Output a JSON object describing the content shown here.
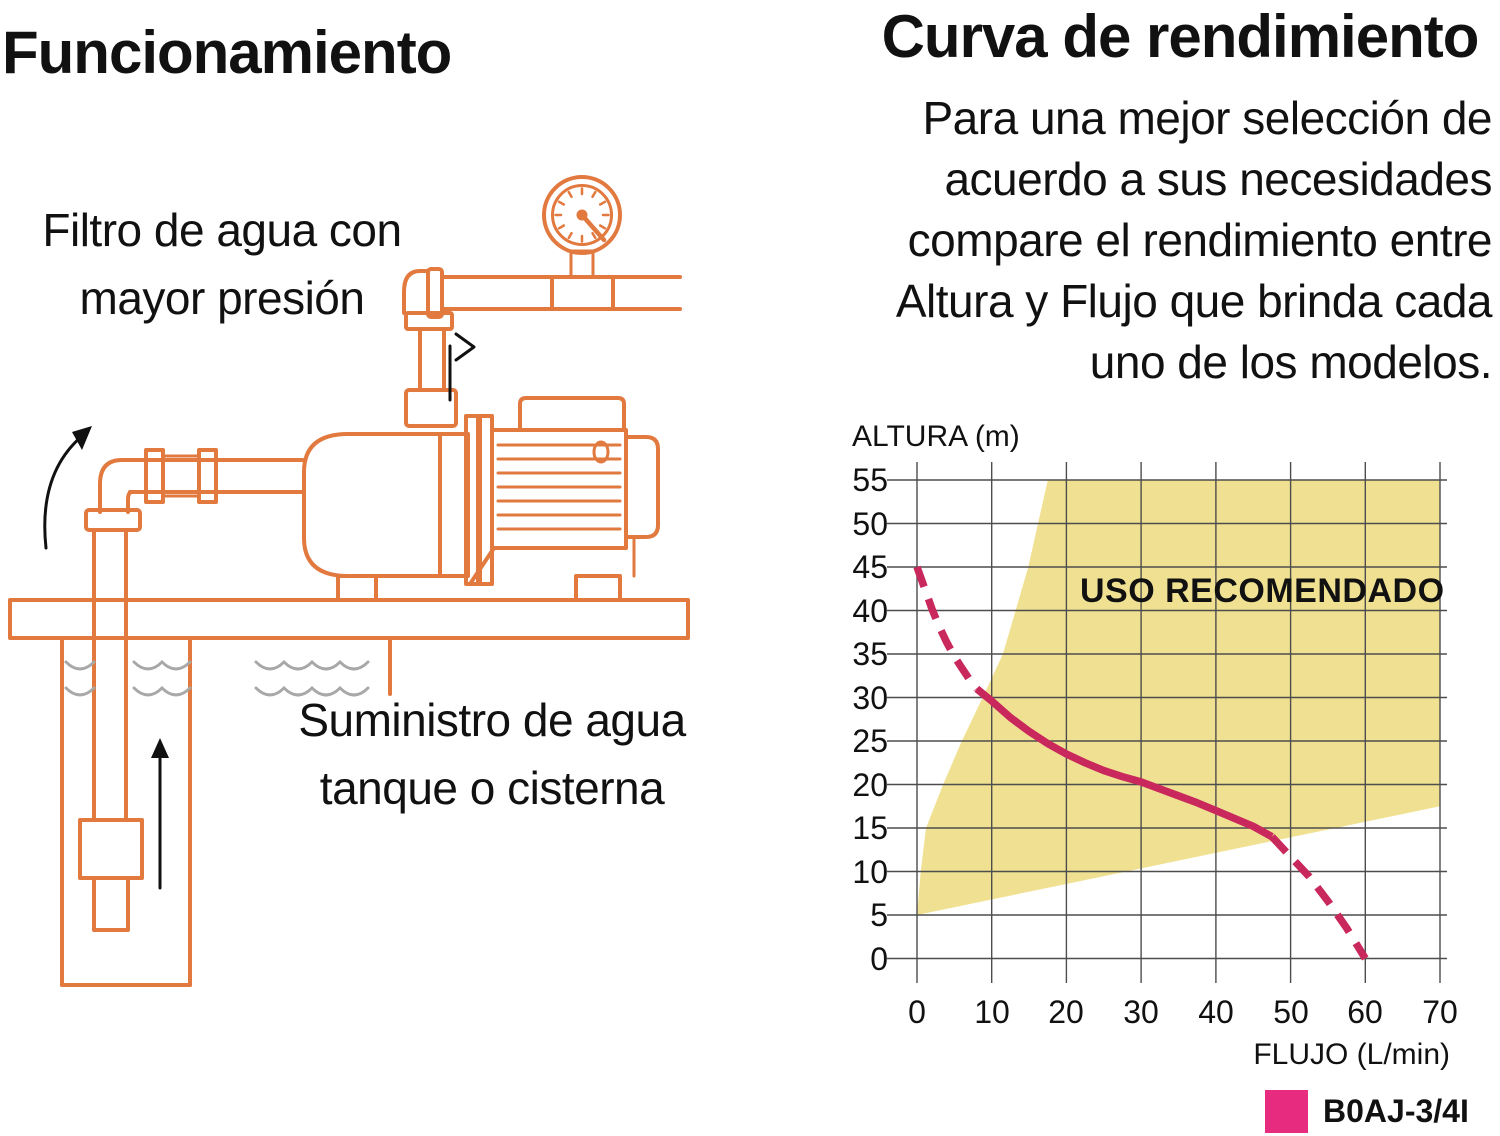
{
  "left_panel": {
    "title": "Funcionamiento",
    "filter_label_line1": "Filtro de agua con",
    "filter_label_line2": "mayor presión",
    "supply_label_line1": "Suministro de agua",
    "supply_label_line2": "tanque o cisterna"
  },
  "right_panel": {
    "title": "Curva de rendimiento",
    "lines": [
      "Para una mejor selección de",
      "acuerdo a sus necesidades",
      "compare el rendimiento entre",
      "Altura y Flujo que brinda cada",
      "uno de los modelos."
    ]
  },
  "colors": {
    "orange": "#E2793F",
    "curve_pink": "#C9285D",
    "legend_pink": "#E72C80",
    "region_yellow": "#F0E192",
    "grid": "#4d4d4d",
    "water": "#A8A8A8",
    "black": "#111111"
  },
  "chart_data": {
    "type": "line",
    "title": "Curva de rendimiento",
    "xlabel": "FLUJO (L/min)",
    "ylabel": "ALTURA (m)",
    "xlim": [
      0,
      70
    ],
    "ylim": [
      0,
      55
    ],
    "x_ticks": [
      0,
      10,
      20,
      30,
      40,
      50,
      60,
      70
    ],
    "y_ticks": [
      0,
      5,
      10,
      15,
      20,
      25,
      30,
      35,
      40,
      45,
      50,
      55
    ],
    "grid": true,
    "legend_position": "bottom-right",
    "region": {
      "label": "USO RECOMENDADO",
      "color": "#F0E192",
      "polygon": [
        [
          0,
          5
        ],
        [
          0.5,
          10
        ],
        [
          1.2,
          15
        ],
        [
          3.5,
          20
        ],
        [
          6,
          25
        ],
        [
          8.8,
          30
        ],
        [
          11.5,
          35
        ],
        [
          13.2,
          40
        ],
        [
          14.9,
          45
        ],
        [
          16.2,
          50
        ],
        [
          17.5,
          55
        ],
        [
          70,
          55
        ],
        [
          70,
          17.5
        ]
      ]
    },
    "series": [
      {
        "name": "B0AJ-3/4I",
        "color": "#C9285D",
        "legend_color": "#E72C80",
        "segments": [
          {
            "style": "dashed",
            "points": [
              [
                0,
                45
              ],
              [
                1,
                42.6
              ],
              [
                2,
                40.2
              ],
              [
                3,
                38.1
              ],
              [
                4,
                36.3
              ],
              [
                5,
                34.7
              ],
              [
                6,
                33.4
              ],
              [
                7,
                32.1
              ],
              [
                8,
                31
              ]
            ]
          },
          {
            "style": "solid",
            "points": [
              [
                8,
                31
              ],
              [
                10,
                29.6
              ],
              [
                12.5,
                27.7
              ],
              [
                15,
                26.1
              ],
              [
                17.5,
                24.7
              ],
              [
                20,
                23.5
              ],
              [
                22.5,
                22.5
              ],
              [
                25,
                21.6
              ],
              [
                27.5,
                20.9
              ],
              [
                30,
                20.3
              ],
              [
                32.5,
                19.5
              ],
              [
                35,
                18.7
              ],
              [
                37.5,
                17.9
              ],
              [
                40,
                17
              ],
              [
                42.5,
                16.1
              ],
              [
                45,
                15.2
              ],
              [
                47.5,
                14
              ]
            ]
          },
          {
            "style": "dashed",
            "points": [
              [
                47.5,
                14
              ],
              [
                50,
                11.7
              ],
              [
                52.5,
                9.4
              ],
              [
                55,
                6.6
              ],
              [
                57.5,
                3.5
              ],
              [
                60,
                0
              ]
            ]
          }
        ]
      }
    ]
  }
}
